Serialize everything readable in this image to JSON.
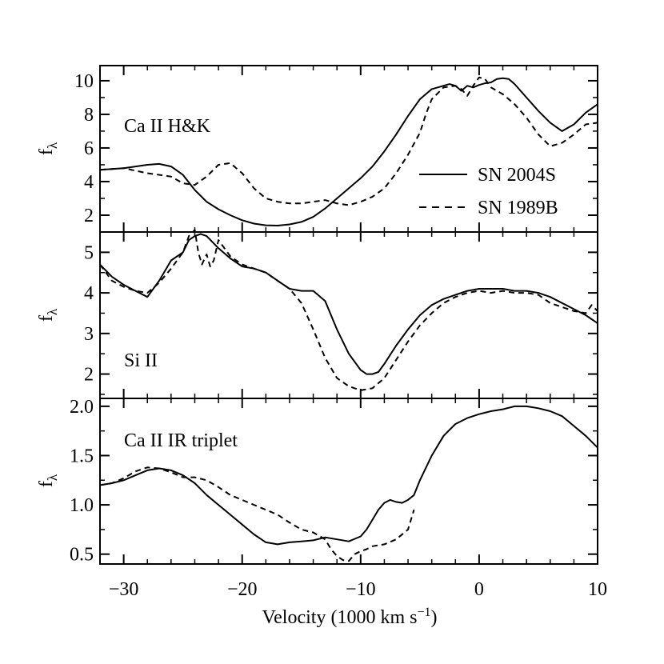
{
  "chart_data": {
    "type": "line",
    "xlabel": "Velocity (1000 km s",
    "xlabel_sup": "−1",
    "xlabel_close": ")",
    "xlim": [
      -32,
      10
    ],
    "xticks": [
      -30,
      -20,
      -10,
      0,
      10
    ],
    "xtick_labels": [
      "−30",
      "−20",
      "−10",
      "0",
      "10"
    ],
    "legend": {
      "placement": "right",
      "entries": [
        {
          "label": "SN 2004S",
          "style": "solid"
        },
        {
          "label": "SN 1989B",
          "style": "dashed"
        }
      ]
    },
    "panels": [
      {
        "label": "Ca II H&K",
        "ylabel": "f",
        "ylabel_sub": "λ",
        "ylim": [
          1.0,
          10.9
        ],
        "yticks": [
          2,
          4,
          6,
          8,
          10
        ],
        "ytick_labels": [
          "2",
          "4",
          "6",
          "8",
          "10"
        ],
        "series": [
          {
            "name": "SN 2004S",
            "style": "solid",
            "x": [
              -32,
              -30,
              -28,
              -27,
              -26,
              -25,
              -24,
              -23,
              -22,
              -21,
              -20,
              -19,
              -18,
              -17,
              -16,
              -15,
              -14,
              -13,
              -12,
              -11,
              -10,
              -9,
              -8,
              -7,
              -6,
              -5,
              -4,
              -3,
              -2.5,
              -2,
              -1.5,
              -1,
              -0.5,
              0,
              0.5,
              1,
              1.5,
              2,
              2.5,
              3,
              4,
              5,
              6,
              7,
              8,
              9,
              10
            ],
            "y": [
              4.7,
              4.8,
              5.0,
              5.05,
              4.9,
              4.4,
              3.5,
              2.8,
              2.35,
              2.0,
              1.7,
              1.5,
              1.4,
              1.38,
              1.45,
              1.6,
              1.9,
              2.4,
              3.0,
              3.6,
              4.2,
              4.9,
              5.8,
              6.8,
              7.9,
              8.9,
              9.5,
              9.7,
              9.8,
              9.7,
              9.4,
              9.7,
              9.6,
              9.75,
              9.85,
              9.9,
              10.1,
              10.15,
              10.1,
              9.8,
              9.0,
              8.2,
              7.5,
              7.0,
              7.4,
              8.1,
              8.6
            ]
          },
          {
            "name": "SN 1989B",
            "style": "dashed",
            "x": [
              -32,
              -30,
              -28,
              -26,
              -25,
              -24,
              -23,
              -22,
              -21,
              -20,
              -19,
              -18,
              -17,
              -16,
              -15,
              -14,
              -13,
              -12,
              -11,
              -10,
              -9,
              -8,
              -7,
              -6,
              -5,
              -4.5,
              -4,
              -3,
              -2,
              -1.5,
              -1,
              -0.5,
              0,
              0.5,
              1,
              2,
              3,
              4,
              5,
              6,
              7,
              8,
              9,
              10
            ],
            "y": [
              4.7,
              4.8,
              4.5,
              4.3,
              3.9,
              3.8,
              4.3,
              5.0,
              5.1,
              4.5,
              3.6,
              3.0,
              2.8,
              2.7,
              2.7,
              2.8,
              2.9,
              2.7,
              2.6,
              2.8,
              3.1,
              3.6,
              4.5,
              5.6,
              6.9,
              8.0,
              8.9,
              9.6,
              9.7,
              9.5,
              9.1,
              9.7,
              10.2,
              10.1,
              9.6,
              9.2,
              8.6,
              7.8,
              6.8,
              6.1,
              6.3,
              6.8,
              7.4,
              7.5
            ]
          }
        ]
      },
      {
        "label": "Si II",
        "ylabel": "f",
        "ylabel_sub": "λ",
        "ylim": [
          1.4,
          5.5
        ],
        "yticks": [
          2,
          3,
          4,
          5
        ],
        "ytick_labels": [
          "2",
          "3",
          "4",
          "5"
        ],
        "series": [
          {
            "name": "SN 2004S",
            "style": "solid",
            "x": [
              -32,
              -31,
              -30,
              -29,
              -28,
              -27,
              -26,
              -25,
              -24.5,
              -24,
              -23.5,
              -23,
              -22,
              -21,
              -20,
              -19,
              -18,
              -17,
              -16,
              -15,
              -14,
              -13,
              -12,
              -11,
              -10,
              -9.5,
              -9,
              -8.5,
              -8,
              -7,
              -6,
              -5,
              -4,
              -3,
              -2,
              -1,
              0,
              1,
              2,
              3,
              4,
              5,
              6,
              7,
              8,
              9,
              10
            ],
            "y": [
              4.7,
              4.4,
              4.2,
              4.05,
              3.9,
              4.3,
              4.8,
              5.0,
              5.3,
              5.4,
              5.45,
              5.4,
              5.1,
              4.85,
              4.65,
              4.6,
              4.5,
              4.3,
              4.1,
              4.05,
              4.05,
              3.8,
              3.1,
              2.5,
              2.1,
              2.0,
              2.0,
              2.05,
              2.25,
              2.7,
              3.1,
              3.45,
              3.7,
              3.85,
              3.95,
              4.05,
              4.1,
              4.1,
              4.1,
              4.05,
              4.05,
              4.0,
              3.9,
              3.75,
              3.6,
              3.45,
              3.25
            ]
          },
          {
            "name": "SN 1989B",
            "style": "dashed",
            "x": [
              -32,
              -31,
              -30,
              -29,
              -28,
              -27,
              -26,
              -25,
              -24.5,
              -24,
              -23.7,
              -23.4,
              -23,
              -22.7,
              -22.4,
              -22,
              -21,
              -20,
              -19,
              -18,
              -17,
              -16,
              -15,
              -14,
              -13,
              -12,
              -11,
              -10,
              -9,
              -8,
              -7,
              -6,
              -5,
              -4,
              -3,
              -2,
              -1,
              0,
              1,
              2,
              3,
              4,
              5,
              6,
              7,
              8,
              9,
              9.5,
              10
            ],
            "y": [
              4.7,
              4.3,
              4.15,
              4.05,
              4.0,
              4.25,
              4.6,
              5.0,
              5.4,
              5.55,
              5.0,
              4.7,
              4.95,
              4.65,
              4.8,
              5.3,
              4.9,
              4.7,
              4.6,
              4.5,
              4.3,
              4.1,
              3.75,
              3.1,
              2.4,
              1.9,
              1.7,
              1.6,
              1.65,
              1.9,
              2.35,
              2.8,
              3.2,
              3.5,
              3.75,
              3.9,
              4.0,
              4.05,
              4.0,
              4.05,
              4.0,
              4.0,
              3.95,
              3.75,
              3.65,
              3.55,
              3.5,
              3.7,
              3.55
            ]
          }
        ]
      },
      {
        "label": "Ca II IR triplet",
        "ylabel": "f",
        "ylabel_sub": "λ",
        "ylim": [
          0.4,
          2.08
        ],
        "yticks": [
          0.5,
          1.0,
          1.5,
          2.0
        ],
        "ytick_labels": [
          "0.5",
          "1.0",
          "1.5",
          "2.0"
        ],
        "series": [
          {
            "name": "SN 2004S",
            "style": "solid",
            "x": [
              -32,
              -31,
              -30,
              -29,
              -28,
              -27,
              -26,
              -25,
              -24,
              -23,
              -22,
              -21,
              -20,
              -19,
              -18,
              -17,
              -16,
              -15,
              -14,
              -13,
              -12,
              -11,
              -10,
              -9.5,
              -9,
              -8.5,
              -8,
              -7.5,
              -7,
              -6.5,
              -6,
              -5.5,
              -5,
              -4,
              -3,
              -2,
              -1,
              0,
              1,
              2,
              3,
              4,
              5,
              6,
              7,
              8,
              9,
              10
            ],
            "y": [
              1.2,
              1.22,
              1.25,
              1.3,
              1.35,
              1.37,
              1.35,
              1.3,
              1.22,
              1.1,
              1.0,
              0.9,
              0.8,
              0.7,
              0.62,
              0.6,
              0.62,
              0.63,
              0.64,
              0.67,
              0.65,
              0.63,
              0.68,
              0.75,
              0.85,
              0.95,
              1.02,
              1.05,
              1.03,
              1.02,
              1.05,
              1.1,
              1.25,
              1.5,
              1.7,
              1.82,
              1.88,
              1.92,
              1.95,
              1.97,
              2.0,
              2.0,
              1.98,
              1.95,
              1.9,
              1.8,
              1.7,
              1.58
            ]
          },
          {
            "name": "SN 1989B",
            "style": "dashed",
            "x": [
              -32,
              -31,
              -30,
              -29,
              -28,
              -27,
              -26,
              -25,
              -24,
              -23,
              -22,
              -21,
              -20,
              -19,
              -18,
              -17,
              -16,
              -15,
              -14,
              -13,
              -12.5,
              -12,
              -11.5,
              -11,
              -10.5,
              -10,
              -9.5,
              -9,
              -8,
              -7,
              -6,
              -5.5
            ],
            "y": [
              1.2,
              1.22,
              1.27,
              1.34,
              1.38,
              1.37,
              1.33,
              1.28,
              1.28,
              1.25,
              1.18,
              1.1,
              1.05,
              1.0,
              0.95,
              0.9,
              0.82,
              0.75,
              0.72,
              0.65,
              0.55,
              0.48,
              0.44,
              0.43,
              0.5,
              0.53,
              0.55,
              0.58,
              0.6,
              0.65,
              0.75,
              0.95
            ]
          }
        ]
      }
    ]
  }
}
